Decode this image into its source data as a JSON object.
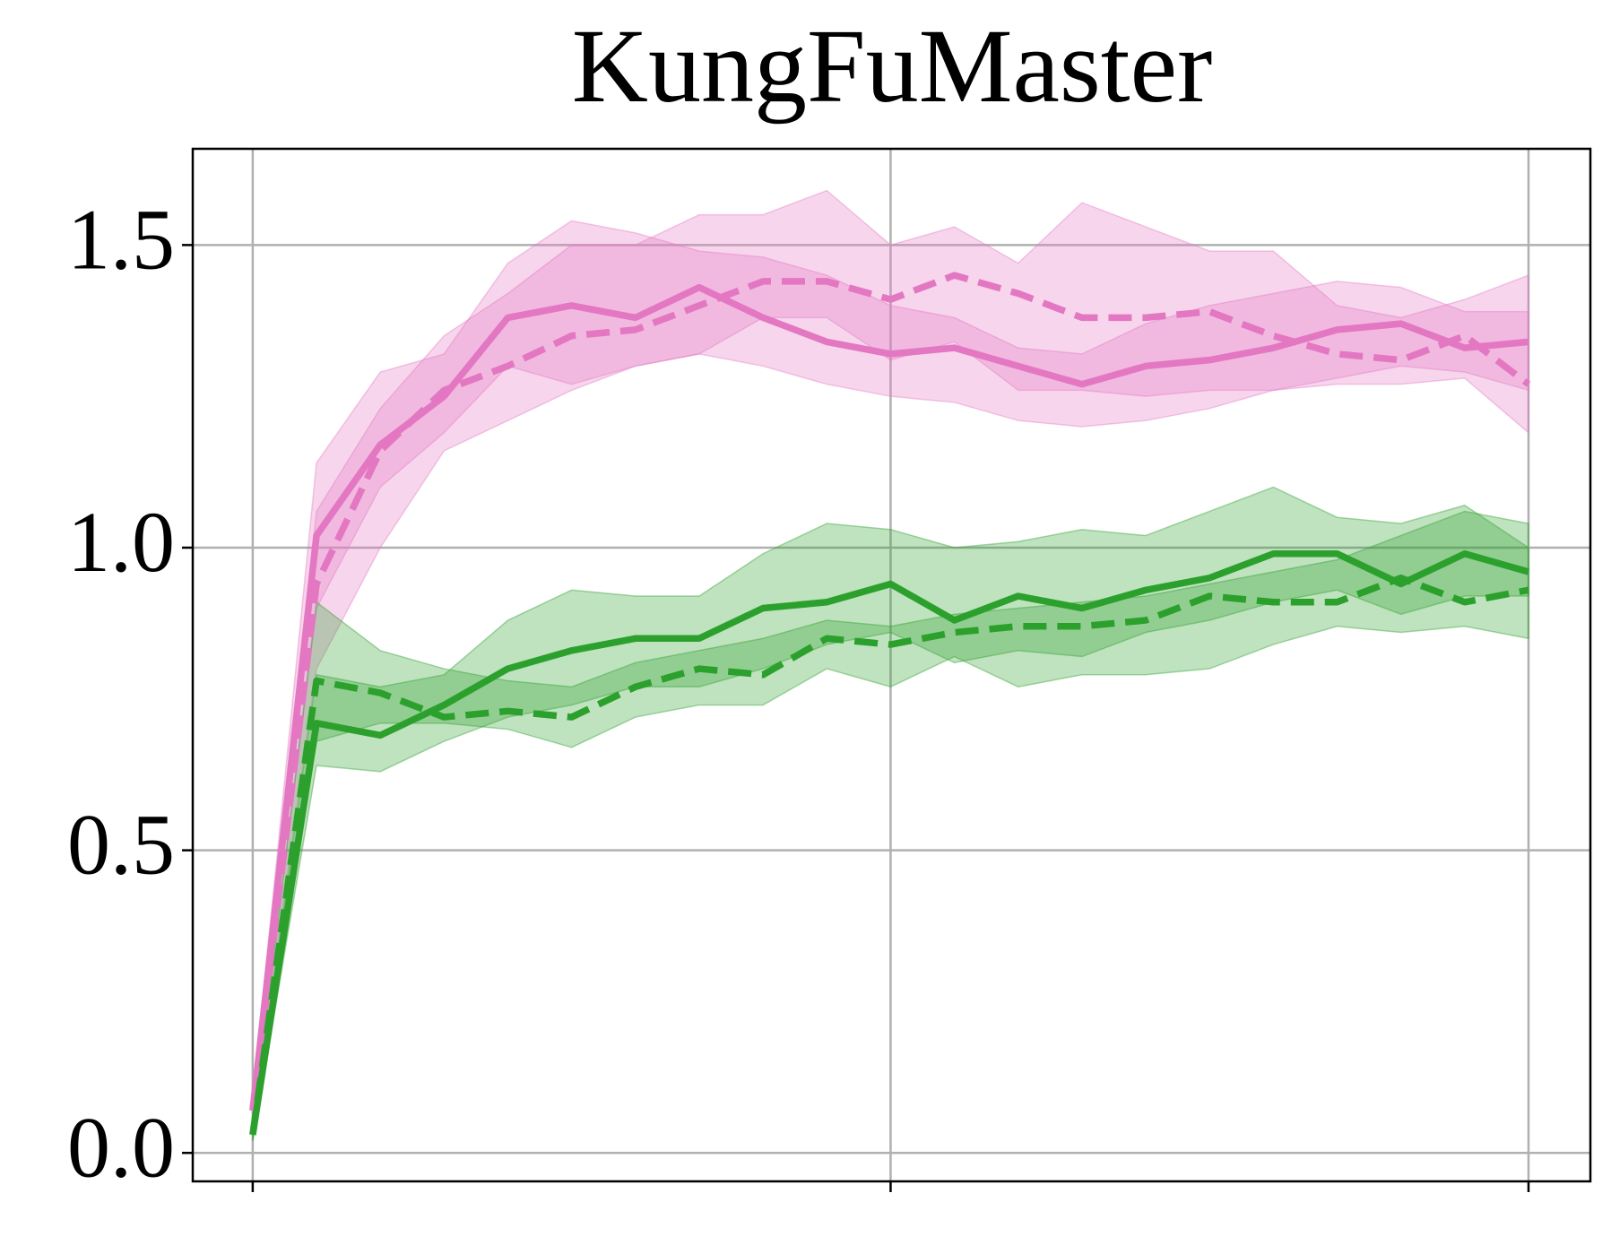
{
  "chart_data": {
    "type": "line",
    "title": "KungFuMaster",
    "x": [
      0,
      1,
      2,
      3,
      4,
      5,
      6,
      7,
      8,
      9,
      10,
      11,
      12,
      13,
      14,
      15,
      16,
      17,
      18,
      19,
      20
    ],
    "xlim": [
      -0.94,
      20.97
    ],
    "xticks": [
      0,
      10,
      20
    ],
    "ylim": [
      -0.047,
      1.659
    ],
    "yticks": [
      {
        "value": 0,
        "label": "0.0"
      },
      0.5,
      {
        "value": 1,
        "label": "1.0"
      },
      1.5
    ],
    "grid": true,
    "series": [
      {
        "color": "#e377c2",
        "linestyle": "solid",
        "values": [
          0.07,
          1.02,
          1.17,
          1.25,
          1.38,
          1.4,
          1.38,
          1.43,
          1.38,
          1.34,
          1.32,
          1.33,
          1.3,
          1.27,
          1.3,
          1.31,
          1.33,
          1.36,
          1.37,
          1.33,
          1.34
        ],
        "lower": [
          0.05,
          0.9,
          1.1,
          1.19,
          1.3,
          1.27,
          1.3,
          1.32,
          1.3,
          1.27,
          1.25,
          1.24,
          1.21,
          1.2,
          1.21,
          1.23,
          1.26,
          1.28,
          1.3,
          1.29,
          1.26
        ],
        "upper": [
          0.09,
          1.14,
          1.29,
          1.32,
          1.47,
          1.54,
          1.52,
          1.49,
          1.48,
          1.45,
          1.4,
          1.38,
          1.33,
          1.32,
          1.37,
          1.4,
          1.42,
          1.44,
          1.43,
          1.39,
          1.39
        ]
      },
      {
        "color": "#e377c2",
        "linestyle": "dashed",
        "values": [
          0.07,
          0.94,
          1.16,
          1.26,
          1.3,
          1.35,
          1.36,
          1.4,
          1.44,
          1.44,
          1.41,
          1.45,
          1.42,
          1.38,
          1.38,
          1.39,
          1.35,
          1.32,
          1.31,
          1.35,
          1.27
        ],
        "lower": [
          0.05,
          0.8,
          1.0,
          1.16,
          1.21,
          1.26,
          1.3,
          1.32,
          1.38,
          1.38,
          1.31,
          1.34,
          1.26,
          1.26,
          1.25,
          1.26,
          1.26,
          1.27,
          1.27,
          1.28,
          1.19
        ],
        "upper": [
          0.09,
          1.06,
          1.23,
          1.35,
          1.42,
          1.5,
          1.5,
          1.55,
          1.55,
          1.59,
          1.5,
          1.53,
          1.47,
          1.57,
          1.53,
          1.49,
          1.49,
          1.4,
          1.38,
          1.41,
          1.45
        ]
      },
      {
        "color": "#2ca02c",
        "linestyle": "solid",
        "values": [
          0.03,
          0.71,
          0.69,
          0.74,
          0.8,
          0.83,
          0.85,
          0.85,
          0.9,
          0.91,
          0.94,
          0.88,
          0.92,
          0.9,
          0.93,
          0.95,
          0.99,
          0.99,
          0.94,
          0.99,
          0.96
        ],
        "lower": [
          0.02,
          0.64,
          0.63,
          0.68,
          0.72,
          0.74,
          0.77,
          0.77,
          0.8,
          0.84,
          0.86,
          0.81,
          0.83,
          0.82,
          0.86,
          0.88,
          0.91,
          0.93,
          0.89,
          0.92,
          0.92
        ],
        "upper": [
          0.04,
          0.79,
          0.77,
          0.79,
          0.88,
          0.93,
          0.92,
          0.92,
          0.99,
          1.04,
          1.03,
          1.0,
          1.01,
          1.03,
          1.02,
          1.06,
          1.1,
          1.05,
          1.04,
          1.07,
          1.0
        ]
      },
      {
        "color": "#2ca02c",
        "linestyle": "dashed",
        "values": [
          0.03,
          0.78,
          0.76,
          0.72,
          0.73,
          0.72,
          0.77,
          0.8,
          0.79,
          0.85,
          0.84,
          0.86,
          0.87,
          0.87,
          0.88,
          0.92,
          0.91,
          0.91,
          0.95,
          0.91,
          0.93
        ],
        "lower": [
          0.02,
          0.68,
          0.71,
          0.71,
          0.7,
          0.67,
          0.72,
          0.74,
          0.74,
          0.8,
          0.77,
          0.82,
          0.77,
          0.79,
          0.79,
          0.8,
          0.84,
          0.87,
          0.86,
          0.87,
          0.85
        ],
        "upper": [
          0.04,
          0.91,
          0.83,
          0.8,
          0.78,
          0.77,
          0.81,
          0.83,
          0.85,
          0.88,
          0.87,
          0.89,
          0.9,
          0.91,
          0.92,
          0.94,
          0.96,
          0.98,
          1.02,
          1.06,
          1.04
        ]
      }
    ]
  }
}
